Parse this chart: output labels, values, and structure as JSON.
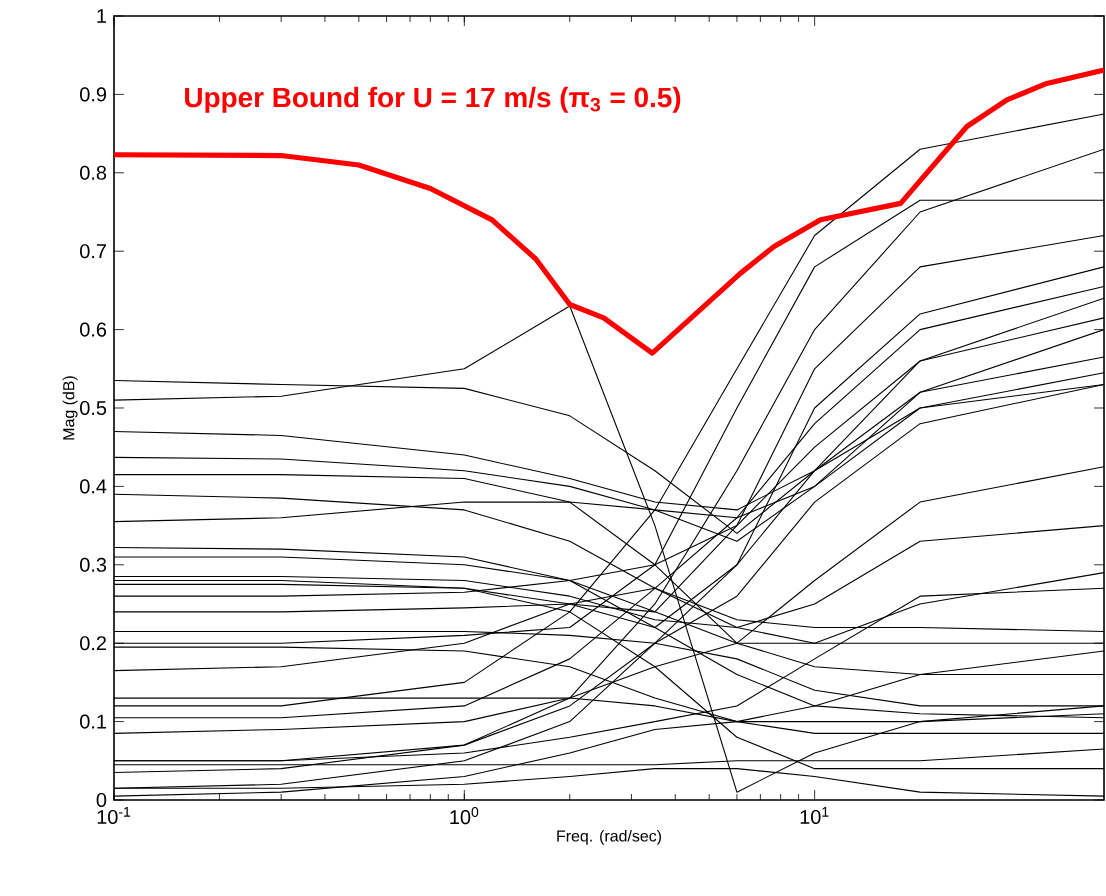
{
  "chart_data": {
    "type": "line",
    "xlabel": "Freq. (rad/sec)",
    "ylabel": "Mag (dB)",
    "log": "x",
    "xlim": [
      0.1,
      67
    ],
    "ylim": [
      0,
      1
    ],
    "xticks": [
      {
        "value": 0.1,
        "label": "10$^{-1}$"
      },
      {
        "value": 1,
        "label": "10$^{0}$"
      },
      {
        "value": 10,
        "label": "10$^{1}$"
      }
    ],
    "yticks": [
      0,
      0.1,
      0.2,
      0.3,
      0.4,
      0.5,
      0.6,
      0.7,
      0.8,
      0.9,
      1
    ],
    "grid": false,
    "legend": false,
    "marker": "none",
    "x": [
      0.1,
      0.3,
      1,
      2,
      3.5,
      6,
      10,
      20,
      67
    ],
    "series": [
      {
        "color": "#000000",
        "values": [
          0.12,
          0.12,
          0.15,
          0.24,
          0.37,
          0.55,
          0.72,
          0.83,
          0.875
        ]
      },
      {
        "color": "#000000",
        "values": [
          0.2,
          0.2,
          0.21,
          0.22,
          0.3,
          0.5,
          0.68,
          0.765,
          0.765
        ]
      },
      {
        "color": "#000000",
        "values": [
          0.05,
          0.05,
          0.07,
          0.13,
          0.25,
          0.42,
          0.6,
          0.75,
          0.83
        ]
      },
      {
        "color": "#000000",
        "values": [
          0.31,
          0.31,
          0.3,
          0.28,
          0.24,
          0.35,
          0.55,
          0.68,
          0.72
        ]
      },
      {
        "color": "#000000",
        "values": [
          0.28,
          0.28,
          0.27,
          0.25,
          0.22,
          0.3,
          0.5,
          0.62,
          0.68
        ]
      },
      {
        "color": "#000000",
        "values": [
          0.105,
          0.105,
          0.12,
          0.18,
          0.27,
          0.36,
          0.48,
          0.6,
          0.655
        ]
      },
      {
        "color": "#000000",
        "values": [
          0.535,
          0.53,
          0.525,
          0.49,
          0.42,
          0.34,
          0.42,
          0.56,
          0.64
        ]
      },
      {
        "color": "#000000",
        "values": [
          0.26,
          0.26,
          0.265,
          0.28,
          0.3,
          0.35,
          0.45,
          0.56,
          0.615
        ]
      },
      {
        "color": "#000000",
        "values": [
          0.437,
          0.435,
          0.42,
          0.4,
          0.37,
          0.33,
          0.4,
          0.52,
          0.6
        ]
      },
      {
        "color": "#000000",
        "values": [
          0.015,
          0.02,
          0.05,
          0.1,
          0.2,
          0.3,
          0.42,
          0.52,
          0.565
        ]
      },
      {
        "color": "#000000",
        "values": [
          0.47,
          0.465,
          0.44,
          0.41,
          0.38,
          0.37,
          0.42,
          0.5,
          0.545
        ]
      },
      {
        "color": "#000000",
        "values": [
          0.035,
          0.04,
          0.07,
          0.12,
          0.2,
          0.26,
          0.38,
          0.48,
          0.53
        ]
      },
      {
        "color": "#000000",
        "values": [
          0.355,
          0.36,
          0.38,
          0.38,
          0.37,
          0.36,
          0.4,
          0.5,
          0.53
        ]
      },
      {
        "color": "#000000",
        "values": [
          0.085,
          0.09,
          0.1,
          0.13,
          0.17,
          0.2,
          0.28,
          0.38,
          0.425
        ]
      },
      {
        "color": "#000000",
        "values": [
          0.39,
          0.385,
          0.37,
          0.33,
          0.27,
          0.22,
          0.25,
          0.33,
          0.35
        ]
      },
      {
        "color": "#000000",
        "values": [
          0.165,
          0.17,
          0.2,
          0.25,
          0.27,
          0.23,
          0.22,
          0.22,
          0.215
        ]
      },
      {
        "color": "#000000",
        "values": [
          0.415,
          0.415,
          0.41,
          0.38,
          0.3,
          0.2,
          0.2,
          0.25,
          0.29
        ]
      },
      {
        "color": "#000000",
        "values": [
          0.322,
          0.32,
          0.31,
          0.28,
          0.22,
          0.16,
          0.12,
          0.11,
          0.105
        ]
      },
      {
        "color": "#000000",
        "values": [
          0.285,
          0.285,
          0.28,
          0.26,
          0.23,
          0.22,
          0.2,
          0.2,
          0.2
        ]
      },
      {
        "color": "#000000",
        "values": [
          0.24,
          0.24,
          0.245,
          0.25,
          0.24,
          0.2,
          0.17,
          0.16,
          0.16
        ]
      },
      {
        "color": "#000000",
        "values": [
          0.215,
          0.215,
          0.215,
          0.21,
          0.2,
          0.18,
          0.14,
          0.12,
          0.12
        ]
      },
      {
        "color": "#000000",
        "values": [
          0.195,
          0.195,
          0.19,
          0.17,
          0.13,
          0.1,
          0.085,
          0.085,
          0.085
        ]
      },
      {
        "color": "#000000",
        "values": [
          0.13,
          0.13,
          0.13,
          0.13,
          0.12,
          0.1,
          0.1,
          0.1,
          0.11
        ]
      },
      {
        "color": "#000000",
        "values": [
          0.05,
          0.05,
          0.06,
          0.08,
          0.1,
          0.12,
          0.18,
          0.26,
          0.27
        ]
      },
      {
        "color": "#000000",
        "values": [
          0.005,
          0.01,
          0.03,
          0.06,
          0.09,
          0.1,
          0.12,
          0.16,
          0.19
        ]
      },
      {
        "color": "#000000",
        "values": [
          0.045,
          0.045,
          0.045,
          0.045,
          0.045,
          0.05,
          0.05,
          0.05,
          0.065
        ]
      },
      {
        "color": "#000000",
        "values": [
          0.51,
          0.515,
          0.55,
          0.63,
          0.35,
          0.01,
          0.06,
          0.1,
          0.12
        ]
      },
      {
        "color": "#000000",
        "values": [
          0.275,
          0.275,
          0.27,
          0.24,
          0.17,
          0.08,
          0.04,
          0.04,
          0.04
        ]
      },
      {
        "color": "#000000",
        "values": [
          0.015,
          0.015,
          0.02,
          0.03,
          0.04,
          0.04,
          0.03,
          0.01,
          0.005
        ]
      },
      {
        "name": "Upper Bound for U = 17 m/s (π$_{3}$ = 0.5)",
        "color": "#ff0000",
        "x": [
          0.1,
          0.3,
          0.5,
          0.8,
          1.2,
          1.6,
          2,
          2.5,
          3.44,
          6.15,
          7.66,
          10.4,
          17.6,
          20.1,
          27.2,
          35.4,
          46,
          67
        ],
        "values": [
          0.823,
          0.822,
          0.81,
          0.78,
          0.74,
          0.69,
          0.632,
          0.615,
          0.57,
          0.672,
          0.706,
          0.74,
          0.761,
          0.791,
          0.859,
          0.893,
          0.914,
          0.931
        ]
      }
    ]
  }
}
